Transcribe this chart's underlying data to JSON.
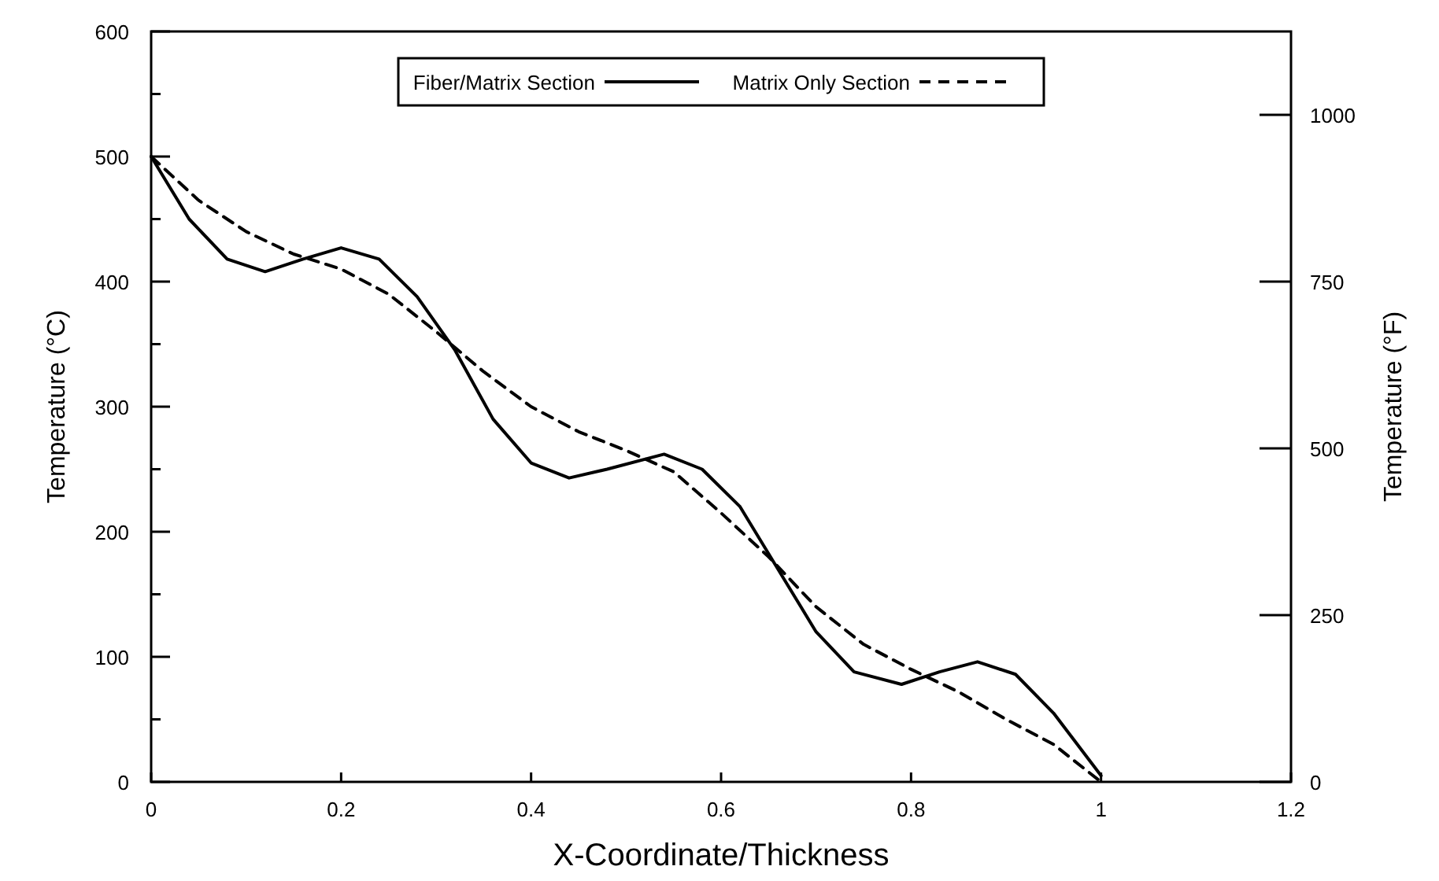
{
  "chart_data": {
    "type": "line",
    "xlabel": "X-Coordinate/Thickness",
    "ylabel": "Temperature (°C)",
    "y2label": "Temperature (°F)",
    "xlim": [
      0,
      1.2
    ],
    "xticks": [
      0,
      0.2,
      0.4,
      0.6,
      0.8,
      1,
      1.2
    ],
    "ylim": [
      0,
      600
    ],
    "yticks": [
      0,
      {
        "value": 50,
        "label": null
      },
      100,
      {
        "value": 150,
        "label": null
      },
      200,
      {
        "value": 250,
        "label": null
      },
      300,
      {
        "value": 350,
        "label": null
      },
      400,
      {
        "value": 450,
        "label": null
      },
      500,
      {
        "value": 550,
        "label": null
      },
      600
    ],
    "y2lim": [
      0,
      1125
    ],
    "y2ticks": [
      0,
      250,
      500,
      750,
      1000
    ],
    "legend": "top",
    "grid": false,
    "marker": "none",
    "series": [
      {
        "name": "Fiber/Matrix Section",
        "color": "#000000",
        "line_style": "solid",
        "x": [
          0,
          0.04,
          0.08,
          0.12,
          0.16,
          0.2,
          0.24,
          0.28,
          0.32,
          0.36,
          0.4,
          0.44,
          0.48,
          0.54,
          0.58,
          0.62,
          0.66,
          0.7,
          0.74,
          0.79,
          0.83,
          0.87,
          0.91,
          0.95,
          1.0
        ],
        "values": [
          500,
          450,
          418,
          408,
          418,
          427,
          418,
          388,
          345,
          290,
          255,
          243,
          250,
          262,
          250,
          220,
          170,
          120,
          88,
          78,
          88,
          96,
          86,
          55,
          5
        ]
      },
      {
        "name": "Matrix Only Section",
        "color": "#000000",
        "line_style": "dashed",
        "x": [
          0,
          0.05,
          0.1,
          0.15,
          0.2,
          0.25,
          0.3,
          0.35,
          0.4,
          0.45,
          0.5,
          0.55,
          0.6,
          0.65,
          0.7,
          0.75,
          0.8,
          0.85,
          0.9,
          0.95,
          1.0
        ],
        "values": [
          500,
          465,
          440,
          422,
          410,
          390,
          360,
          328,
          300,
          280,
          265,
          248,
          215,
          180,
          140,
          110,
          90,
          72,
          50,
          30,
          0
        ]
      }
    ]
  }
}
